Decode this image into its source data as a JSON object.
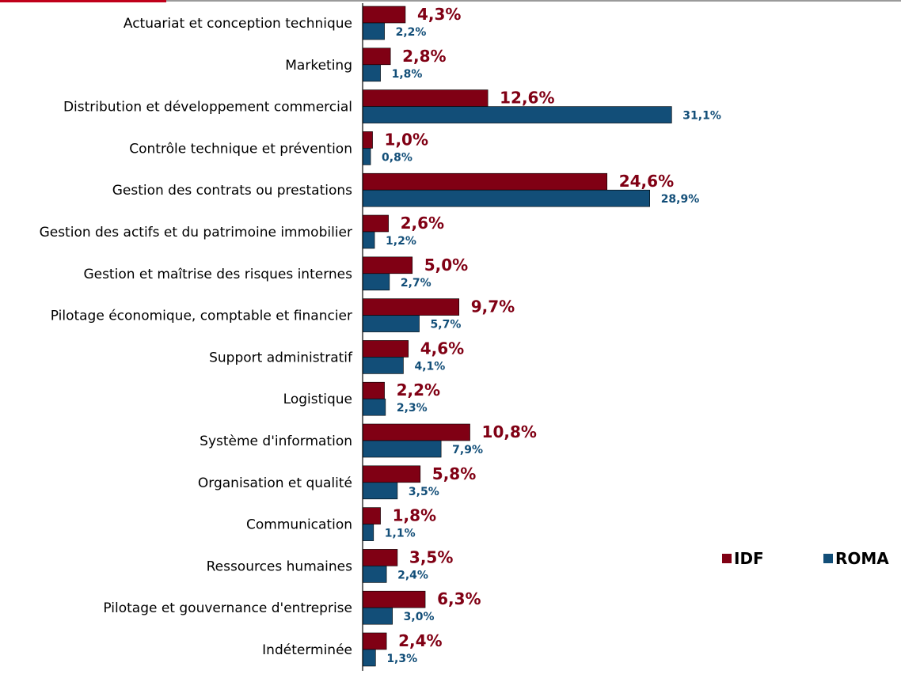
{
  "colors": {
    "idf": "#800014",
    "roma": "#124e78",
    "axis": "#000000",
    "top_rule": "#9a9a9a",
    "top_accent": "#c0001a"
  },
  "chart_data": {
    "type": "bar",
    "orientation": "horizontal",
    "categories": [
      "Actuariat et conception technique",
      "Marketing",
      "Distribution et développement commercial",
      "Contrôle technique et prévention",
      "Gestion des contrats ou prestations",
      "Gestion des actifs et du patrimoine immobilier",
      "Gestion et maîtrise des risques internes",
      "Pilotage économique, comptable et financier",
      "Support administratif",
      "Logistique",
      "Système d'information",
      "Organisation et qualité",
      "Communication",
      "Ressources humaines",
      "Pilotage et gouvernance d'entreprise",
      "Indéterminée"
    ],
    "series": [
      {
        "name": "IDF",
        "values": [
          4.3,
          2.8,
          12.6,
          1.0,
          24.6,
          2.6,
          5.0,
          9.7,
          4.6,
          2.2,
          10.8,
          5.8,
          1.8,
          3.5,
          6.3,
          2.4
        ],
        "labels": [
          "4,3%",
          "2,8%",
          "12,6%",
          "1,0%",
          "24,6%",
          "2,6%",
          "5,0%",
          "9,7%",
          "4,6%",
          "2,2%",
          "10,8%",
          "5,8%",
          "1,8%",
          "3,5%",
          "6,3%",
          "2,4%"
        ]
      },
      {
        "name": "ROMA",
        "values": [
          2.2,
          1.8,
          31.1,
          0.8,
          28.9,
          1.2,
          2.7,
          5.7,
          4.1,
          2.3,
          7.9,
          3.5,
          1.1,
          2.4,
          3.0,
          1.3
        ],
        "labels": [
          "2,2%",
          "1,8%",
          "31,1%",
          "0,8%",
          "28,9%",
          "1,2%",
          "2,7%",
          "5,7%",
          "4,1%",
          "2,3%",
          "7,9%",
          "3,5%",
          "1,1%",
          "2,4%",
          "3,0%",
          "1,3%"
        ]
      }
    ],
    "legend_position": "right",
    "grid": false,
    "title": "",
    "xlabel": "",
    "ylabel": ""
  },
  "legend": {
    "idf_label": "IDF",
    "roma_label": "ROMA"
  }
}
